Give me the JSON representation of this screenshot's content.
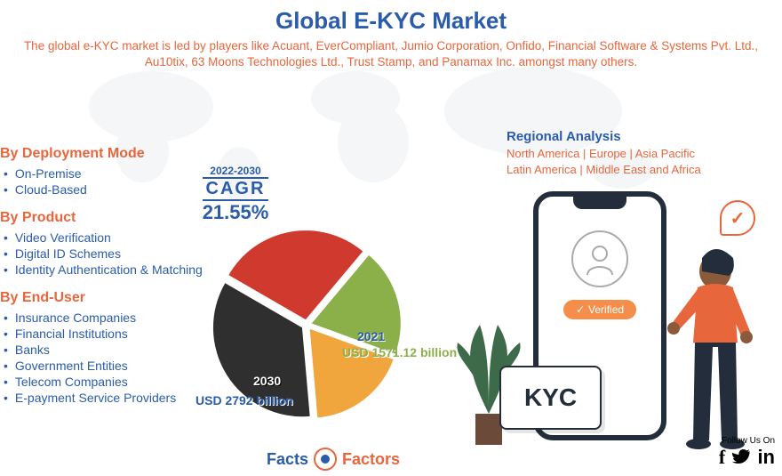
{
  "colors": {
    "title": "#2a5caa",
    "subtitle": "#e8663c",
    "cat_header": "#e8663c",
    "cat_item": "#2a5caa",
    "reg_title": "#2a5caa",
    "reg_body": "#e8663c",
    "cagr": "#2a5caa",
    "pie_slice1": "#d0392e",
    "pie_slice2": "#8bb04a",
    "pie_slice3": "#f0a63c",
    "pie_slice4": "#2f2f2f",
    "verified_bg": "#f58e4a",
    "brand_facts": "#2a5caa",
    "brand_factors": "#e8663c",
    "world": "#b9c5d6",
    "plant": "#3d6b4a",
    "person_shirt": "#e8663c",
    "person_pants": "#232d3b",
    "person_skin": "#8a5a3a"
  },
  "title": "Global E-KYC Market",
  "subtitle": "The global e-KYC market is led by players like Acuant, EverCompliant, Jumio Corporation, Onfido, Financial Software & Systems Pvt. Ltd., Au10tix, 63 Moons Technologies Ltd., Trust Stamp, and Panamax Inc. amongst many others.",
  "categories": [
    {
      "header": "By Deployment Mode",
      "items": [
        "On-Premise",
        "Cloud-Based"
      ]
    },
    {
      "header": "By Product",
      "items": [
        "Video Verification",
        "Digital ID Schemes",
        "Identity Authentication & Matching"
      ]
    },
    {
      "header": "By End-User",
      "items": [
        "Insurance Companies",
        "Financial Institutions",
        "Banks",
        "Government Entities",
        "Telecom Companies",
        "E-payment Service Providers"
      ]
    }
  ],
  "regional": {
    "title": "Regional Analysis",
    "line1": "North America | Europe | Asia Pacific",
    "line2": "Latin America | Middle East and Africa"
  },
  "cagr": {
    "years": "2022-2030",
    "label": "CAGR",
    "pct": "21.55%"
  },
  "pie": {
    "type": "pie",
    "slices": [
      {
        "start": -60,
        "end": 40,
        "color_key": "pie_slice1"
      },
      {
        "start": 40,
        "end": 110,
        "color_key": "pie_slice2"
      },
      {
        "start": 110,
        "end": 175,
        "color_key": "pie_slice3"
      },
      {
        "start": 175,
        "end": 300,
        "color_key": "pie_slice4"
      }
    ],
    "radius": 100,
    "explode": 6,
    "label_2030_year": "2030",
    "label_2030_val": "USD 2792 billion",
    "label_2021_year": "2021",
    "label_2021_val": "USD 1571.12 billion"
  },
  "phone": {
    "verified_label": "Verified",
    "kyc_label": "KYC"
  },
  "brand": {
    "facts": "Facts",
    "amp": "&",
    "factors": "Factors"
  },
  "follow": {
    "label": "Follow Us On"
  }
}
